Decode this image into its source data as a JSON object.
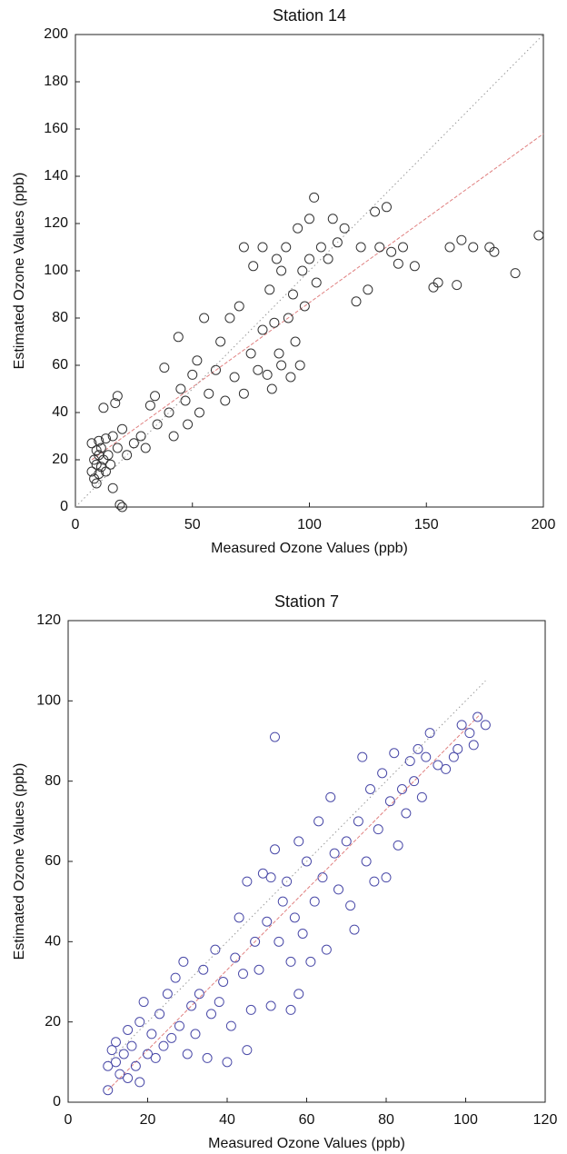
{
  "chart_data": [
    {
      "type": "scatter",
      "title": "Station 14",
      "xlabel": "Measured Ozone Values (ppb)",
      "ylabel": "Estimated Ozone Values (ppb)",
      "xlim": [
        0,
        200
      ],
      "ylim": [
        0,
        200
      ],
      "xticks": [
        0,
        50,
        100,
        150,
        200
      ],
      "yticks": [
        0,
        20,
        40,
        60,
        80,
        100,
        120,
        140,
        160,
        180,
        200
      ],
      "grid": false,
      "series": [
        {
          "color": "#333333",
          "marker": "circle",
          "x": [
            7,
            7,
            8,
            8,
            9,
            9,
            9,
            10,
            10,
            10,
            11,
            11,
            12,
            12,
            13,
            13,
            14,
            15,
            16,
            16,
            17,
            18,
            18,
            19,
            20,
            20,
            22,
            25,
            28,
            30,
            32,
            34,
            35,
            38,
            40,
            42,
            44,
            45,
            47,
            48,
            50,
            52,
            53,
            55,
            57,
            60,
            62,
            64,
            66,
            68,
            70,
            72,
            72,
            75,
            76,
            78,
            80,
            80,
            82,
            83,
            84,
            85,
            86,
            87,
            88,
            88,
            90,
            91,
            92,
            93,
            94,
            95,
            96,
            97,
            98,
            100,
            100,
            102,
            103,
            105,
            108,
            110,
            112,
            115,
            120,
            122,
            125,
            128,
            130,
            133,
            135,
            138,
            140,
            145,
            153,
            155,
            160,
            163,
            165,
            170,
            177,
            179,
            188,
            198
          ],
          "values": [
            27,
            15,
            20,
            12,
            24,
            18,
            10,
            22,
            28,
            14,
            25,
            17,
            20,
            42,
            15,
            29,
            22,
            18,
            30,
            8,
            44,
            25,
            47,
            1,
            0,
            33,
            22,
            27,
            30,
            25,
            43,
            47,
            35,
            59,
            40,
            30,
            72,
            50,
            45,
            35,
            56,
            62,
            40,
            80,
            48,
            58,
            70,
            45,
            80,
            55,
            85,
            110,
            48,
            65,
            102,
            58,
            110,
            75,
            56,
            92,
            50,
            78,
            105,
            65,
            100,
            60,
            110,
            80,
            55,
            90,
            70,
            118,
            60,
            100,
            85,
            105,
            122,
            131,
            95,
            110,
            105,
            122,
            112,
            118,
            87,
            110,
            92,
            125,
            110,
            127,
            108,
            103,
            110,
            102,
            93,
            95,
            110,
            94,
            113,
            110,
            110,
            108,
            99,
            115
          ]
        }
      ],
      "lines": [
        {
          "color": "#e08080",
          "style": "dashed",
          "x": [
            7,
            200
          ],
          "values": [
            20,
            158
          ]
        },
        {
          "color": "#9a9a9a",
          "style": "dotted",
          "x": [
            0,
            200
          ],
          "values": [
            0,
            200
          ]
        }
      ]
    },
    {
      "type": "scatter",
      "title": "Station 7",
      "xlabel": "Measured Ozone Values (ppb)",
      "ylabel": "Estimated Ozone Values (ppb)",
      "xlim": [
        0,
        120
      ],
      "ylim": [
        0,
        120
      ],
      "xticks": [
        0,
        20,
        40,
        60,
        80,
        100,
        120
      ],
      "yticks": [
        0,
        20,
        40,
        60,
        80,
        100,
        120
      ],
      "grid": false,
      "series": [
        {
          "color": "#4a4aa8",
          "marker": "circle",
          "x": [
            10,
            10,
            11,
            12,
            12,
            13,
            14,
            15,
            15,
            16,
            17,
            18,
            18,
            19,
            20,
            21,
            22,
            23,
            24,
            25,
            26,
            27,
            28,
            29,
            30,
            31,
            32,
            33,
            34,
            35,
            36,
            37,
            38,
            39,
            40,
            41,
            42,
            43,
            44,
            45,
            45,
            46,
            47,
            48,
            49,
            50,
            51,
            51,
            52,
            52,
            53,
            54,
            55,
            56,
            56,
            57,
            58,
            58,
            59,
            60,
            61,
            62,
            63,
            64,
            65,
            66,
            67,
            68,
            70,
            71,
            72,
            73,
            74,
            75,
            76,
            77,
            78,
            79,
            80,
            81,
            82,
            83,
            84,
            85,
            86,
            87,
            88,
            89,
            90,
            91,
            93,
            95,
            97,
            98,
            99,
            101,
            102,
            103,
            105
          ],
          "values": [
            3,
            9,
            13,
            10,
            15,
            7,
            12,
            6,
            18,
            14,
            9,
            5,
            20,
            25,
            12,
            17,
            11,
            22,
            14,
            27,
            16,
            31,
            19,
            35,
            12,
            24,
            17,
            27,
            33,
            11,
            22,
            38,
            25,
            30,
            10,
            19,
            36,
            46,
            32,
            13,
            55,
            23,
            40,
            33,
            57,
            45,
            24,
            56,
            91,
            63,
            40,
            50,
            55,
            23,
            35,
            46,
            27,
            65,
            42,
            60,
            35,
            50,
            70,
            56,
            38,
            76,
            62,
            53,
            65,
            49,
            43,
            70,
            86,
            60,
            78,
            55,
            68,
            82,
            56,
            75,
            87,
            64,
            78,
            72,
            85,
            80,
            88,
            76,
            86,
            92,
            84,
            83,
            86,
            88,
            94,
            92,
            89,
            96,
            94
          ]
        }
      ],
      "lines": [
        {
          "color": "#e08080",
          "style": "dashed",
          "x": [
            10,
            104
          ],
          "values": [
            3,
            97
          ]
        },
        {
          "color": "#9a9a9a",
          "style": "dotted",
          "x": [
            10,
            105
          ],
          "values": [
            10,
            105
          ]
        }
      ]
    }
  ]
}
